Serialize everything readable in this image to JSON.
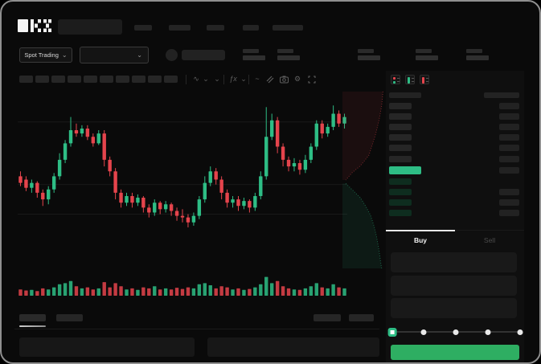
{
  "window": {
    "brand": "OKX"
  },
  "subheader": {
    "market_selector": {
      "label": "Spot Trading",
      "chevron": "⌄"
    },
    "pair_dropdown": {
      "chevron": "⌄"
    }
  },
  "toolbar": {
    "icons": {
      "chart_type": "∿",
      "chevron": "⌄",
      "indicators": "ƒx",
      "line_tool": "~",
      "gear": "⚙"
    }
  },
  "orderbook": {
    "view_icons": [
      "book-split-view",
      "book-bids-view",
      "book-asks-view"
    ],
    "ask_rows": 6,
    "bid_rows": 4,
    "last_price_color": "#2EBD85"
  },
  "trade_panel": {
    "tabs": [
      {
        "label": "Buy",
        "active": true
      },
      {
        "label": "Sell",
        "active": false
      }
    ],
    "field_count": 3,
    "slider_stops": [
      0,
      25,
      50,
      75,
      100
    ],
    "submit_color": "#2EAE62"
  },
  "chart_data": {
    "type": "candlestick",
    "up_color": "#2EBD85",
    "down_color": "#E5444C",
    "grid_color": "#191919",
    "gridlines_price": [
      85,
      47,
      29
    ],
    "price_range": [
      0,
      100
    ],
    "candles": [
      [
        52,
        55,
        46,
        48
      ],
      [
        50,
        52,
        43,
        45
      ],
      [
        45,
        50,
        42,
        48
      ],
      [
        48,
        49,
        39,
        42
      ],
      [
        42,
        44,
        34,
        38
      ],
      [
        38,
        46,
        35,
        44
      ],
      [
        44,
        54,
        42,
        52
      ],
      [
        52,
        66,
        50,
        62
      ],
      [
        62,
        74,
        60,
        72
      ],
      [
        72,
        88,
        70,
        80
      ],
      [
        80,
        84,
        76,
        78
      ],
      [
        78,
        83,
        76,
        81
      ],
      [
        81,
        83,
        74,
        76
      ],
      [
        76,
        78,
        70,
        72
      ],
      [
        72,
        80,
        71,
        78
      ],
      [
        78,
        80,
        58,
        62
      ],
      [
        62,
        64,
        52,
        55
      ],
      [
        55,
        57,
        38,
        42
      ],
      [
        42,
        44,
        33,
        36
      ],
      [
        36,
        42,
        34,
        40
      ],
      [
        40,
        42,
        33,
        36
      ],
      [
        36,
        41,
        34,
        39
      ],
      [
        39,
        40,
        30,
        33
      ],
      [
        33,
        35,
        27,
        30
      ],
      [
        30,
        38,
        28,
        36
      ],
      [
        36,
        37,
        29,
        32
      ],
      [
        32,
        37,
        30,
        35
      ],
      [
        35,
        36,
        28,
        31
      ],
      [
        31,
        33,
        25,
        28
      ],
      [
        28,
        32,
        24,
        27
      ],
      [
        27,
        29,
        21,
        24
      ],
      [
        24,
        30,
        22,
        28
      ],
      [
        28,
        40,
        26,
        38
      ],
      [
        38,
        52,
        36,
        48
      ],
      [
        48,
        58,
        46,
        55
      ],
      [
        55,
        57,
        47,
        50
      ],
      [
        50,
        52,
        38,
        42
      ],
      [
        42,
        44,
        33,
        36
      ],
      [
        36,
        40,
        33,
        38
      ],
      [
        38,
        40,
        31,
        34
      ],
      [
        34,
        39,
        32,
        37
      ],
      [
        37,
        38,
        30,
        33
      ],
      [
        33,
        42,
        31,
        40
      ],
      [
        40,
        55,
        38,
        52
      ],
      [
        52,
        94,
        50,
        76
      ],
      [
        76,
        90,
        74,
        86
      ],
      [
        86,
        88,
        66,
        70
      ],
      [
        70,
        72,
        58,
        62
      ],
      [
        62,
        64,
        55,
        58
      ],
      [
        58,
        63,
        55,
        60
      ],
      [
        60,
        62,
        53,
        56
      ],
      [
        56,
        65,
        54,
        62
      ],
      [
        62,
        72,
        60,
        70
      ],
      [
        70,
        86,
        68,
        84
      ],
      [
        84,
        86,
        75,
        78
      ],
      [
        78,
        84,
        76,
        82
      ],
      [
        82,
        95,
        80,
        90
      ],
      [
        90,
        92,
        82,
        84
      ],
      [
        84,
        90,
        81,
        88
      ]
    ],
    "volumes": [
      30,
      25,
      28,
      22,
      35,
      30,
      40,
      55,
      60,
      70,
      45,
      35,
      40,
      30,
      35,
      65,
      40,
      60,
      45,
      30,
      35,
      28,
      40,
      35,
      45,
      30,
      35,
      30,
      38,
      32,
      40,
      35,
      55,
      60,
      50,
      35,
      45,
      40,
      30,
      35,
      28,
      32,
      40,
      55,
      90,
      60,
      70,
      45,
      35,
      30,
      28,
      35,
      45,
      60,
      40,
      35,
      55,
      40,
      35
    ],
    "depth": {
      "asks": [
        [
          0.95,
          0.0
        ],
        [
          0.92,
          0.08
        ],
        [
          0.86,
          0.16
        ],
        [
          0.78,
          0.24
        ],
        [
          0.7,
          0.3
        ],
        [
          0.62,
          0.36
        ],
        [
          0.42,
          0.42
        ],
        [
          0.22,
          0.46
        ],
        [
          0.08,
          0.5
        ]
      ],
      "bids": [
        [
          0.08,
          0.52
        ],
        [
          0.25,
          0.56
        ],
        [
          0.42,
          0.6
        ],
        [
          0.55,
          0.65
        ],
        [
          0.66,
          0.7
        ],
        [
          0.74,
          0.76
        ],
        [
          0.8,
          0.82
        ],
        [
          0.86,
          0.9
        ],
        [
          0.9,
          0.97
        ],
        [
          0.92,
          1.0
        ]
      ]
    }
  }
}
